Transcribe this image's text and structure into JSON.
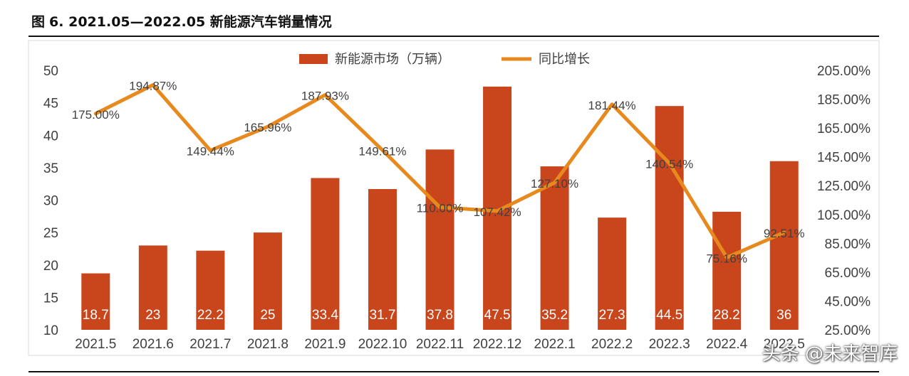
{
  "header": {
    "figure_label": "图",
    "figure_number": "6.",
    "title_text": "2021.05—2022.05 新能源汽车销量情况"
  },
  "watermark": "头条 @未来智库",
  "colors": {
    "bar": "#C9461D",
    "line": "#E8891E",
    "axis_text": "#404040",
    "bar_label": "#ffffff"
  },
  "chart_data": {
    "type": "bar+line",
    "categories": [
      "2021.5",
      "2021.6",
      "2021.7",
      "2021.8",
      "2021.9",
      "2022.10",
      "2022.11",
      "2022.12",
      "2022.1",
      "2022.2",
      "2022.3",
      "2022.4",
      "2022.5"
    ],
    "series": [
      {
        "name": "新能源市场（万辆）",
        "type": "bar",
        "axis": "left",
        "values": [
          18.7,
          23,
          22.2,
          25,
          33.4,
          31.7,
          37.8,
          47.5,
          35.2,
          27.3,
          44.5,
          28.2,
          36
        ],
        "labels": [
          "18.7",
          "23",
          "22.2",
          "25",
          "33.4",
          "31.7",
          "37.8",
          "47.5",
          "35.2",
          "27.3",
          "44.5",
          "28.2",
          "36"
        ]
      },
      {
        "name": "同比增长",
        "type": "line",
        "axis": "right",
        "values": [
          175.0,
          194.87,
          149.44,
          165.96,
          187.93,
          149.61,
          110.0,
          107.42,
          127.1,
          181.44,
          140.54,
          75.16,
          92.51
        ],
        "labels": [
          "175.00%",
          "194.87%",
          "149.44%",
          "165.96%",
          "187.93%",
          "149.61%",
          "110.00%",
          "107.42%",
          "127.10%",
          "181.44%",
          "140.54%",
          "75.16%",
          "92.51%"
        ]
      }
    ],
    "left_axis": {
      "min": 10,
      "max": 50,
      "ticks": [
        "10",
        "15",
        "20",
        "25",
        "30",
        "35",
        "40",
        "45",
        "50"
      ]
    },
    "right_axis": {
      "min": 25,
      "max": 205,
      "ticks": [
        "25.00%",
        "45.00%",
        "65.00%",
        "85.00%",
        "105.00%",
        "125.00%",
        "145.00%",
        "165.00%",
        "185.00%",
        "205.00%"
      ]
    },
    "legend_position": "top-center",
    "grid": false
  }
}
